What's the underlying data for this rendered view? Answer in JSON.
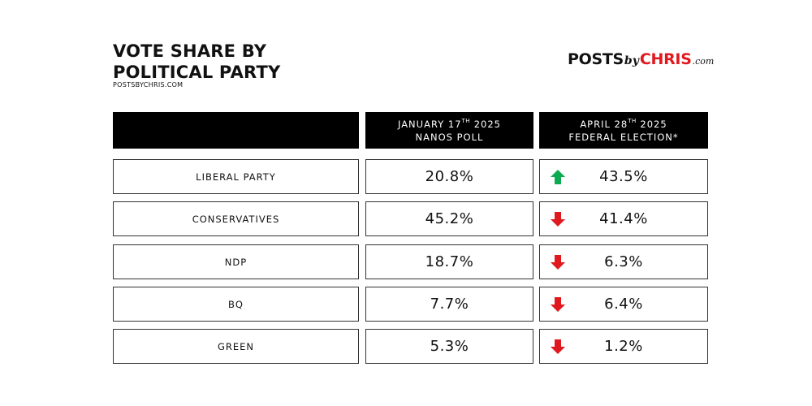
{
  "title_line1": "VOTE SHARE BY",
  "title_line2": "POLITICAL PARTY",
  "subtitle": "POSTSBYCHRIS.COM",
  "logo": {
    "part1": "POSTS",
    "by": "by",
    "part2": "CHRIS",
    "com": ".com"
  },
  "colors": {
    "up": "#0dab4f",
    "down": "#e0191e",
    "logo_red": "#e0191e",
    "header_bg": "#000000"
  },
  "header": {
    "col1": {
      "line1_pre": "JANUARY 17",
      "line1_sup": "TH",
      "line1_post": " 2025",
      "line2": "NANOS POLL"
    },
    "col2": {
      "line1_pre": "APRIL 28",
      "line1_sup": "TH",
      "line1_post": " 2025",
      "line2": "FEDERAL ELECTION*"
    }
  },
  "rows": [
    {
      "party": "LIBERAL PARTY",
      "poll": "20.8%",
      "election": "43.5%",
      "trend": "up",
      "trend_icon": "arrow-up-icon"
    },
    {
      "party": "CONSERVATIVES",
      "poll": "45.2%",
      "election": "41.4%",
      "trend": "down",
      "trend_icon": "arrow-down-icon"
    },
    {
      "party": "NDP",
      "poll": "18.7%",
      "election": "6.3%",
      "trend": "down",
      "trend_icon": "arrow-down-icon"
    },
    {
      "party": "BQ",
      "poll": "7.7%",
      "election": "6.4%",
      "trend": "down",
      "trend_icon": "arrow-down-icon"
    },
    {
      "party": "GREEN",
      "poll": "5.3%",
      "election": "1.2%",
      "trend": "down",
      "trend_icon": "arrow-down-icon"
    }
  ],
  "chart_data": {
    "type": "table",
    "title": "VOTE SHARE BY POLITICAL PARTY",
    "columns": [
      "JANUARY 17TH 2025 NANOS POLL",
      "APRIL 28TH 2025 FEDERAL ELECTION*"
    ],
    "categories": [
      "LIBERAL PARTY",
      "CONSERVATIVES",
      "NDP",
      "BQ",
      "GREEN"
    ],
    "series": [
      {
        "name": "JANUARY 17TH 2025 NANOS POLL",
        "values": [
          20.8,
          45.2,
          18.7,
          7.7,
          5.3
        ]
      },
      {
        "name": "APRIL 28TH 2025 FEDERAL ELECTION*",
        "values": [
          43.5,
          41.4,
          6.3,
          6.4,
          1.2
        ]
      }
    ]
  }
}
